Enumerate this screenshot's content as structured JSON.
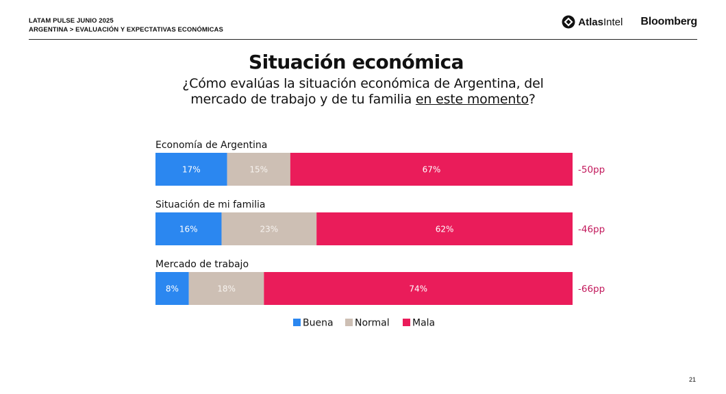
{
  "header": {
    "line1": "LATAM PULSE JUNIO 2025",
    "line2": "ARGENTINA > EVALUACIÓN Y EXPECTATIVAS ECONÓMICAS",
    "logo_atlas_bold": "Atlas",
    "logo_atlas_light": "Intel",
    "logo_bloomberg": "Bloomberg"
  },
  "slide": {
    "title": "Situación económica",
    "subtitle_a": "¿Cómo evalúas la situación económica de Argentina, del",
    "subtitle_b": "mercado de trabajo y de tu familia ",
    "subtitle_emph": "en este momento",
    "subtitle_end": "?",
    "page_number": "21"
  },
  "colors": {
    "buena": "#2b87f0",
    "normal": "#cdbfb4",
    "mala": "#ea1c5a",
    "net": "#c2185b"
  },
  "chart_data": {
    "type": "bar",
    "orientation": "horizontal-stacked",
    "categories": [
      "Economía de Argentina",
      "Situación de mi familia",
      "Mercado de trabajo"
    ],
    "series": [
      {
        "name": "Buena",
        "values": [
          17,
          16,
          8
        ],
        "labels": [
          "17%",
          "16%",
          "8%"
        ]
      },
      {
        "name": "Normal",
        "values": [
          15,
          23,
          18
        ],
        "labels": [
          "15%",
          "23%",
          "18%"
        ]
      },
      {
        "name": "Mala",
        "values": [
          67,
          62,
          74
        ],
        "labels": [
          "67%",
          "62%",
          "74%"
        ]
      }
    ],
    "net_labels": [
      "-50pp",
      "-46pp",
      "-66pp"
    ],
    "legend_position": "bottom",
    "xlim": [
      0,
      100
    ]
  }
}
